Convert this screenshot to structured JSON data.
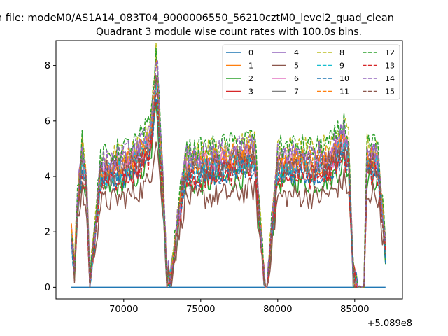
{
  "chart_data": {
    "type": "line",
    "suptitle": "n file: modeM0/AS1A14_083T04_9000006550_56210cztM0_level2_quad_clean",
    "title": "Quadrant 3 module wise count rates with 100.0s bins.",
    "xlabel": "",
    "ylabel": "",
    "x_offset_label": "+5.089e8",
    "xlim": [
      65600,
      88100
    ],
    "ylim": [
      -0.42,
      8.9
    ],
    "x_ticks": [
      70000,
      75000,
      80000,
      85000
    ],
    "x_tick_labels": [
      "70000",
      "75000",
      "80000",
      "85000"
    ],
    "y_ticks": [
      0,
      2,
      4,
      6,
      8
    ],
    "y_tick_labels": [
      "0",
      "2",
      "4",
      "6",
      "8"
    ],
    "x_range": [
      66600,
      87000
    ],
    "bin_seconds": 100,
    "gaps": [
      {
        "from": 67760,
        "to": 67840
      },
      {
        "from": 72760,
        "to": 72860
      },
      {
        "from": 79120,
        "to": 79300
      },
      {
        "from": 85120,
        "to": 85600
      }
    ],
    "envelope_x": [
      66600,
      66800,
      67000,
      67300,
      67600,
      67800,
      68500,
      69500,
      70500,
      71200,
      71700,
      72000,
      72150,
      72300,
      72500,
      72750,
      73000,
      74000,
      75500,
      76500,
      77500,
      78500,
      79100,
      79300,
      80000,
      81000,
      82500,
      83500,
      84300,
      84600,
      84900,
      85100,
      85600,
      85800,
      86500,
      87000
    ],
    "envelope_y": [
      1.8,
      0.6,
      3.0,
      4.8,
      3.5,
      0.15,
      4.1,
      4.3,
      4.5,
      4.8,
      5.2,
      6.8,
      7.8,
      5.8,
      4.0,
      1.2,
      0.15,
      4.3,
      4.4,
      4.5,
      4.6,
      4.8,
      0.5,
      0.15,
      4.4,
      4.5,
      4.4,
      4.6,
      5.2,
      4.8,
      0.5,
      0.1,
      0.1,
      4.6,
      4.5,
      1.4
    ],
    "series": [
      {
        "name": "0",
        "scale": 0.0,
        "color": "#1f77b4",
        "dashed": false
      },
      {
        "name": "1",
        "scale": 1.0,
        "color": "#ff7f0e",
        "dashed": false
      },
      {
        "name": "2",
        "scale": 0.86,
        "color": "#2ca02c",
        "dashed": false
      },
      {
        "name": "3",
        "scale": 0.94,
        "color": "#d62728",
        "dashed": false
      },
      {
        "name": "4",
        "scale": 1.05,
        "color": "#9467bd",
        "dashed": false
      },
      {
        "name": "5",
        "scale": 0.74,
        "color": "#8c564b",
        "dashed": false
      },
      {
        "name": "6",
        "scale": 1.02,
        "color": "#e377c2",
        "dashed": false
      },
      {
        "name": "7",
        "scale": 0.96,
        "color": "#7f7f7f",
        "dashed": false
      },
      {
        "name": "8",
        "scale": 1.12,
        "color": "#bcbd22",
        "dashed": true
      },
      {
        "name": "9",
        "scale": 0.98,
        "color": "#17becf",
        "dashed": true
      },
      {
        "name": "10",
        "scale": 0.92,
        "color": "#1f77b4",
        "dashed": true
      },
      {
        "name": "11",
        "scale": 1.04,
        "color": "#ff7f0e",
        "dashed": true
      },
      {
        "name": "12",
        "scale": 1.14,
        "color": "#2ca02c",
        "dashed": true
      },
      {
        "name": "13",
        "scale": 0.9,
        "color": "#d62728",
        "dashed": true
      },
      {
        "name": "14",
        "scale": 1.09,
        "color": "#9467bd",
        "dashed": true
      },
      {
        "name": "15",
        "scale": 0.99,
        "color": "#8c564b",
        "dashed": true
      }
    ],
    "grid": false,
    "legend_position": "top-right",
    "legend_columns": 4
  }
}
